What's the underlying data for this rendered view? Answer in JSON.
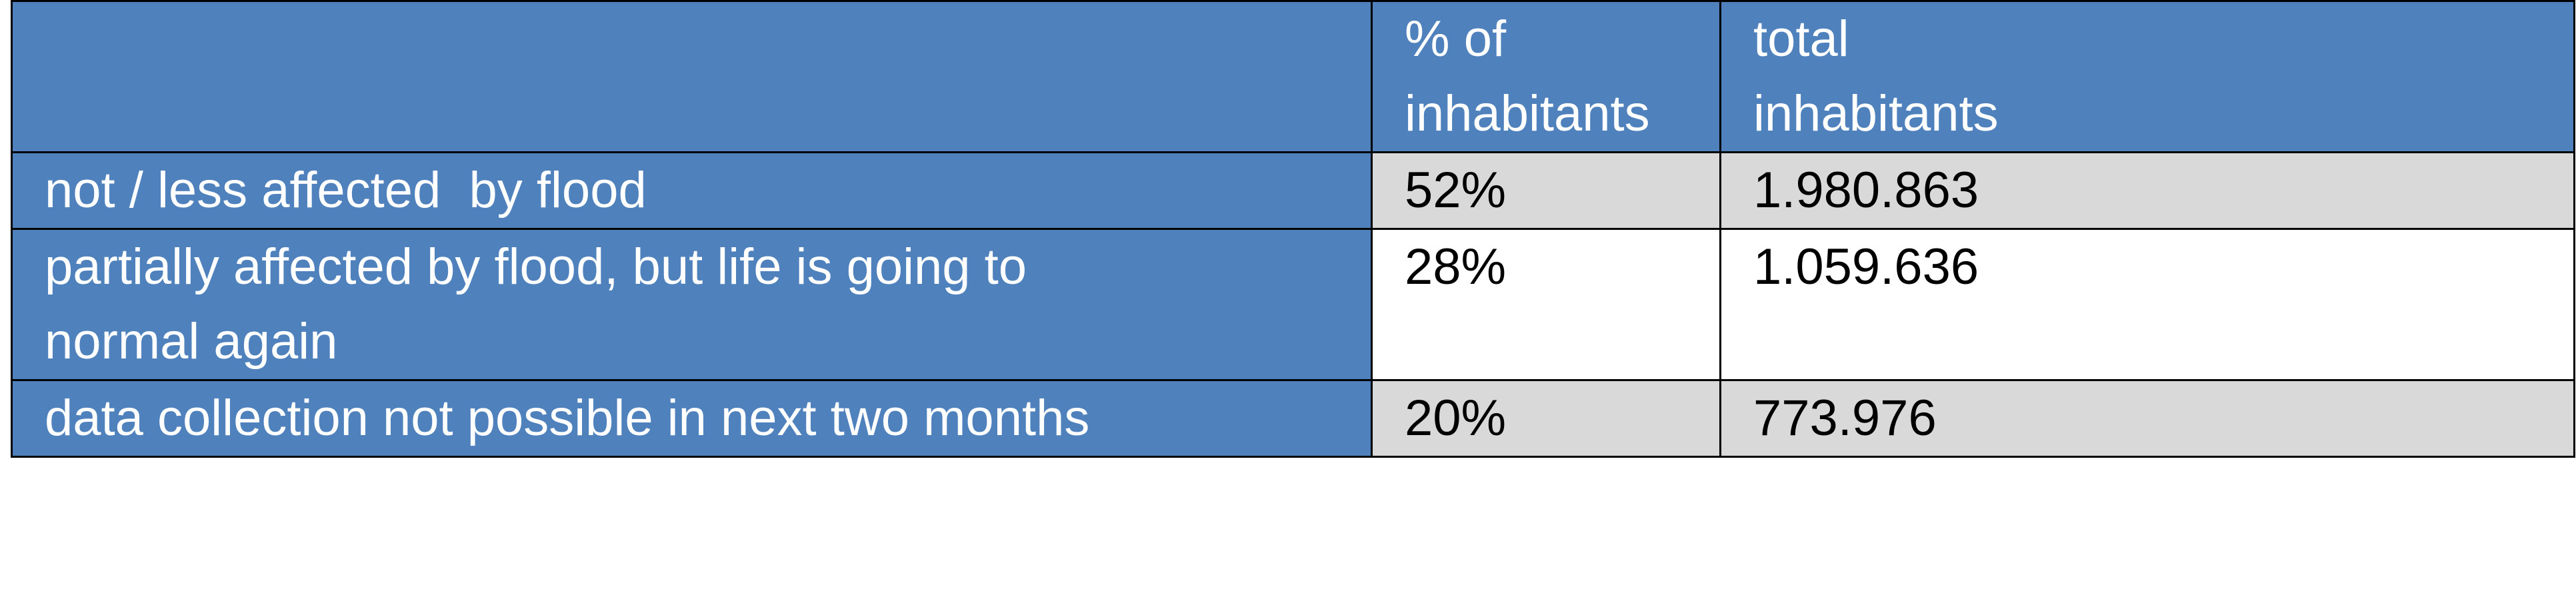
{
  "table": {
    "header": {
      "blank": "",
      "percent_line1": "% of",
      "percent_line2": "inhabitants",
      "total_line1": "total",
      "total_line2": "inhabitants"
    },
    "rows": [
      {
        "label_line1": "not / less affected  by flood",
        "label_line2": "",
        "percent": "52%",
        "total": "1.980.863"
      },
      {
        "label_line1": "partially affected by flood, but life is going to",
        "label_line2": "normal again",
        "percent": "28%",
        "total": "1.059.636"
      },
      {
        "label_line1": "data collection not possible in next two months",
        "label_line2": "",
        "percent": "20%",
        "total": "773.976"
      }
    ]
  },
  "colors": {
    "header_blue": "#4f81bd",
    "shade_gray": "#d9d9d9",
    "border": "#000000"
  }
}
